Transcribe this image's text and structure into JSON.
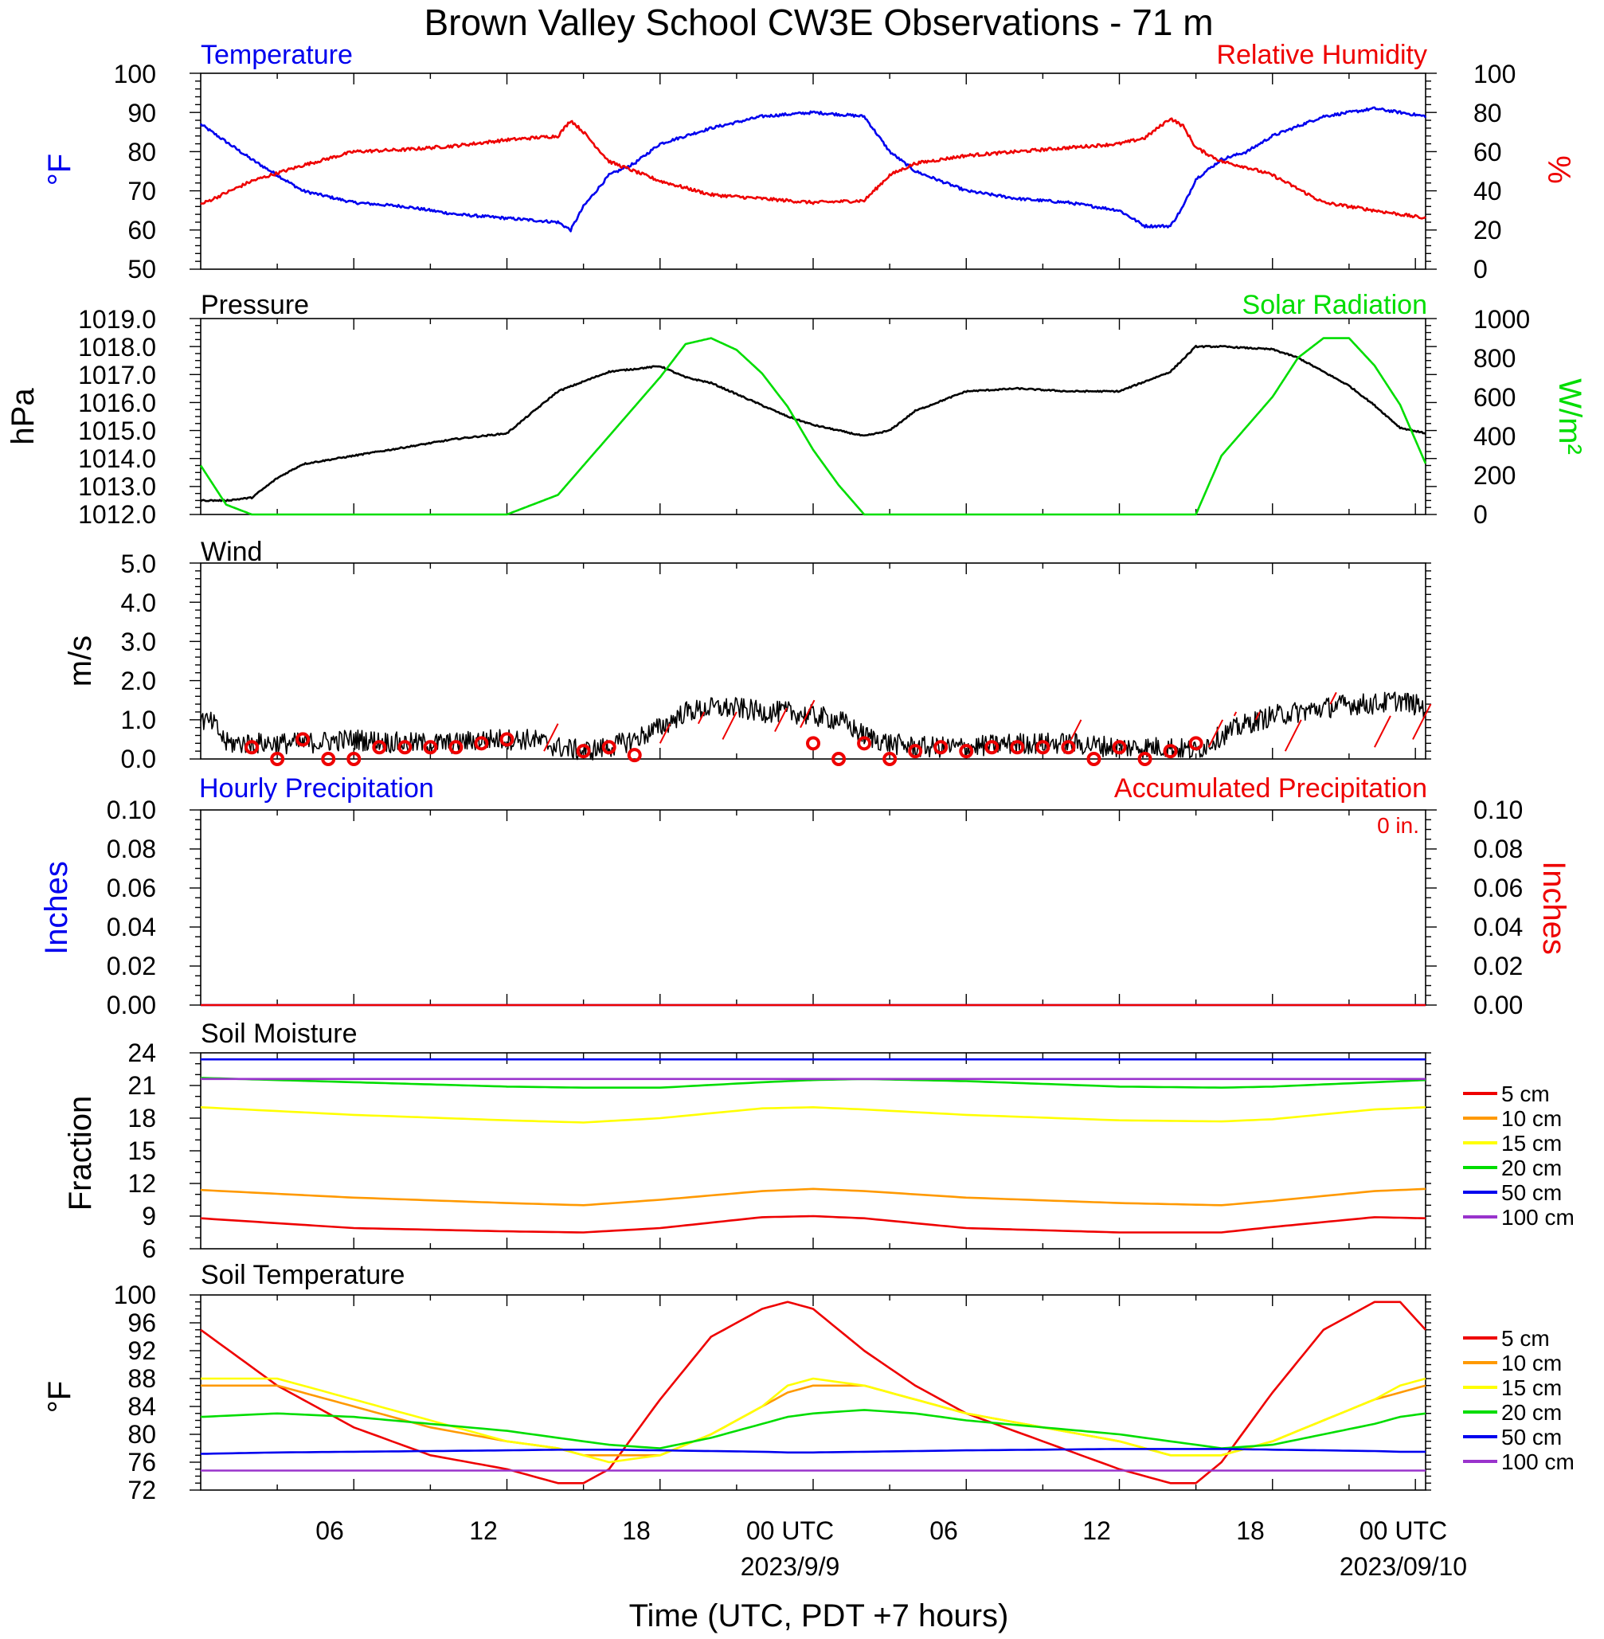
{
  "title": "Brown Valley School CW3E Observations - 71 m",
  "xlabel": "Time (UTC, PDT +7 hours)",
  "x_tick_labels": [
    "06",
    "12",
    "18",
    "00 UTC",
    "06",
    "12",
    "18",
    "00 UTC"
  ],
  "x_date_labels": [
    "2023/9/9",
    "2023/09/10"
  ],
  "colors": {
    "blue": "#0000ee",
    "red": "#ee0000",
    "green": "#00dd00",
    "black": "#000000",
    "orange": "#ff9900",
    "yellow": "#ffff00",
    "purple": "#9933cc"
  },
  "panels": {
    "temp_rh": {
      "left_title": "Temperature",
      "right_title": "Relative Humidity",
      "left_unit": "°F",
      "right_unit": "%",
      "left_ticks": [
        "100",
        "90",
        "80",
        "70",
        "60",
        "50"
      ],
      "right_ticks": [
        "100",
        "80",
        "60",
        "40",
        "20",
        "0"
      ]
    },
    "pressure_solar": {
      "left_title": "Pressure",
      "right_title": "Solar Radiation",
      "left_unit": "hPa",
      "right_unit": "W/m²",
      "left_ticks": [
        "1019.0",
        "1018.0",
        "1017.0",
        "1016.0",
        "1015.0",
        "1014.0",
        "1013.0",
        "1012.0"
      ],
      "right_ticks": [
        "1000",
        "800",
        "600",
        "400",
        "200",
        "0"
      ]
    },
    "wind": {
      "left_title": "Wind",
      "left_unit": "m/s",
      "left_ticks": [
        "5.0",
        "4.0",
        "3.0",
        "2.0",
        "1.0",
        "0.0"
      ]
    },
    "precip": {
      "left_title": "Hourly Precipitation",
      "right_title": "Accumulated Precipitation",
      "left_unit": "Inches",
      "right_unit": "Inches",
      "accum_text": "0 in.",
      "left_ticks": [
        "0.10",
        "0.08",
        "0.06",
        "0.04",
        "0.02",
        "0.00"
      ],
      "right_ticks": [
        "0.10",
        "0.08",
        "0.06",
        "0.04",
        "0.02",
        "0.00"
      ]
    },
    "soil_moisture": {
      "left_title": "Soil Moisture",
      "left_unit": "Fraction",
      "left_ticks": [
        "24",
        "21",
        "18",
        "15",
        "12",
        "9",
        "6"
      ],
      "legend": [
        "5 cm",
        "10 cm",
        "15 cm",
        "20 cm",
        "50 cm",
        "100 cm"
      ]
    },
    "soil_temp": {
      "left_title": "Soil Temperature",
      "left_unit": "°F",
      "left_ticks": [
        "100",
        "96",
        "92",
        "88",
        "84",
        "80",
        "76",
        "72"
      ],
      "legend": [
        "5 cm",
        "10 cm",
        "15 cm",
        "20 cm",
        "50 cm",
        "100 cm"
      ]
    }
  },
  "chart_data": [
    {
      "type": "line",
      "title": "Temperature / Relative Humidity",
      "x_hours_utc": [
        0,
        2,
        4,
        6,
        8,
        10,
        12,
        14,
        14.5,
        15,
        16,
        17,
        18,
        20,
        22,
        24,
        26,
        27,
        28,
        30,
        32,
        34,
        36,
        37,
        38,
        38.5,
        39,
        40,
        41,
        42,
        44,
        46,
        48
      ],
      "ylim": [
        50,
        100
      ],
      "y2lim": [
        0,
        100
      ],
      "series": [
        {
          "name": "Temperature",
          "axis": "left",
          "color": "#0000ee",
          "values": [
            87,
            78,
            70,
            67,
            66,
            64,
            63,
            62,
            60,
            66,
            74,
            77,
            82,
            86,
            89,
            90,
            89,
            80,
            75,
            70,
            68,
            67,
            65,
            61,
            61,
            66,
            73,
            78,
            80,
            84,
            89,
            91,
            89
          ]
        },
        {
          "name": "Relative Humidity",
          "axis": "right",
          "color": "#ee0000",
          "values": [
            33,
            45,
            53,
            60,
            61,
            63,
            66,
            68,
            76,
            70,
            55,
            50,
            45,
            38,
            36,
            34,
            35,
            48,
            54,
            58,
            60,
            62,
            64,
            67,
            77,
            73,
            62,
            55,
            52,
            48,
            34,
            30,
            26
          ]
        }
      ]
    },
    {
      "type": "line",
      "title": "Pressure / Solar Radiation",
      "x_hours_utc": [
        0,
        1,
        2,
        3,
        4,
        6,
        8,
        10,
        11,
        12,
        14,
        16,
        18,
        19,
        20,
        21,
        22,
        23,
        24,
        25,
        26,
        27,
        28,
        30,
        32,
        34,
        35,
        36,
        38,
        39,
        40,
        42,
        43,
        44,
        45,
        46,
        47,
        48
      ],
      "ylim": [
        1012,
        1019
      ],
      "y2lim": [
        0,
        1000
      ],
      "series": [
        {
          "name": "Pressure",
          "axis": "left",
          "color": "#000000",
          "values": [
            1012.5,
            1012.5,
            1012.6,
            1013.3,
            1013.8,
            1014.1,
            1014.4,
            1014.7,
            1014.8,
            1014.9,
            1016.4,
            1017.1,
            1017.3,
            1016.9,
            1016.7,
            1016.3,
            1015.9,
            1015.5,
            1015.2,
            1015.0,
            1014.8,
            1015.0,
            1015.7,
            1016.4,
            1016.5,
            1016.4,
            1016.4,
            1016.4,
            1017.1,
            1018.0,
            1018.0,
            1017.9,
            1017.6,
            1017.1,
            1016.6,
            1015.9,
            1015.1,
            1014.9
          ]
        },
        {
          "name": "Solar Radiation",
          "axis": "right",
          "color": "#00dd00",
          "values": [
            250,
            50,
            0,
            0,
            0,
            0,
            0,
            0,
            0,
            0,
            100,
            400,
            700,
            870,
            900,
            840,
            720,
            550,
            330,
            150,
            0,
            0,
            0,
            0,
            0,
            0,
            0,
            0,
            0,
            0,
            300,
            600,
            800,
            900,
            900,
            760,
            560,
            260
          ]
        }
      ]
    },
    {
      "type": "line",
      "title": "Wind",
      "x_hours_utc": [
        0,
        0.5,
        1,
        2,
        4,
        6,
        8,
        10,
        11,
        12,
        13,
        14,
        15,
        16,
        17,
        18,
        19,
        20,
        21,
        22,
        23,
        24,
        25,
        26,
        27,
        28,
        30,
        32,
        34,
        36,
        38,
        39,
        40,
        41,
        42,
        43,
        44,
        45,
        46,
        47,
        48
      ],
      "ylim": [
        0,
        5
      ],
      "series": [
        {
          "name": "Wind speed",
          "color": "#000000",
          "values": [
            1.0,
            0.9,
            0.4,
            0.4,
            0.4,
            0.5,
            0.4,
            0.4,
            0.5,
            0.5,
            0.5,
            0.3,
            0.2,
            0.3,
            0.5,
            0.8,
            1.2,
            1.3,
            1.3,
            1.2,
            1.2,
            1.1,
            1.0,
            0.6,
            0.4,
            0.3,
            0.3,
            0.4,
            0.4,
            0.3,
            0.3,
            0.2,
            0.6,
            0.9,
            1.1,
            1.2,
            1.3,
            1.4,
            1.4,
            1.5,
            1.3
          ]
        }
      ],
      "calm_marker_hours": [
        2,
        3,
        4,
        5,
        6,
        7,
        8,
        9,
        10,
        11,
        12,
        15,
        16,
        17,
        24,
        25,
        26,
        27,
        28,
        29,
        30,
        31,
        32,
        33,
        34,
        35,
        36,
        37,
        38,
        39
      ],
      "calm_marker_values": [
        0.3,
        0.0,
        0.5,
        0.0,
        0.0,
        0.3,
        0.3,
        0.3,
        0.3,
        0.4,
        0.5,
        0.2,
        0.3,
        0.1,
        0.4,
        0.0,
        0.4,
        0.0,
        0.2,
        0.3,
        0.2,
        0.3,
        0.3,
        0.3,
        0.3,
        0.0,
        0.3,
        0.0,
        0.2,
        0.4
      ]
    },
    {
      "type": "line",
      "title": "Hourly / Accumulated Precipitation",
      "x_hours_utc": [
        0,
        48
      ],
      "ylim": [
        0,
        0.1
      ],
      "y2lim": [
        0,
        0.1
      ],
      "series": [
        {
          "name": "Hourly Precipitation",
          "axis": "left",
          "color": "#0000ee",
          "values": [
            0,
            0
          ]
        },
        {
          "name": "Accumulated Precipitation",
          "axis": "right",
          "color": "#ee0000",
          "values": [
            0,
            0
          ]
        }
      ]
    },
    {
      "type": "line",
      "title": "Soil Moisture",
      "x_hours_utc": [
        0,
        6,
        12,
        15,
        18,
        22,
        24,
        26,
        30,
        36,
        40,
        42,
        46,
        48
      ],
      "ylim": [
        6,
        24
      ],
      "series": [
        {
          "name": "5 cm",
          "color": "#ee0000",
          "values": [
            8.8,
            7.9,
            7.6,
            7.5,
            7.9,
            8.9,
            9.0,
            8.8,
            7.9,
            7.5,
            7.5,
            8.0,
            8.9,
            8.8
          ]
        },
        {
          "name": "10 cm",
          "color": "#ff9900",
          "values": [
            11.4,
            10.7,
            10.2,
            10.0,
            10.5,
            11.3,
            11.5,
            11.3,
            10.7,
            10.2,
            10.0,
            10.4,
            11.3,
            11.5
          ]
        },
        {
          "name": "15 cm",
          "color": "#ffff00",
          "values": [
            19.0,
            18.3,
            17.8,
            17.6,
            18.0,
            18.9,
            19.0,
            18.8,
            18.3,
            17.8,
            17.7,
            17.9,
            18.8,
            19.0
          ]
        },
        {
          "name": "20 cm",
          "color": "#00dd00",
          "values": [
            21.7,
            21.3,
            20.9,
            20.8,
            20.8,
            21.3,
            21.5,
            21.6,
            21.4,
            20.9,
            20.8,
            20.9,
            21.3,
            21.5
          ]
        },
        {
          "name": "50 cm",
          "color": "#0000ee",
          "values": [
            23.4,
            23.4,
            23.4,
            23.4,
            23.4,
            23.4,
            23.4,
            23.4,
            23.4,
            23.4,
            23.4,
            23.4,
            23.4,
            23.4
          ]
        },
        {
          "name": "100 cm",
          "color": "#9933cc",
          "values": [
            21.6,
            21.6,
            21.6,
            21.6,
            21.6,
            21.6,
            21.6,
            21.6,
            21.6,
            21.6,
            21.6,
            21.6,
            21.6,
            21.6
          ]
        }
      ]
    },
    {
      "type": "line",
      "title": "Soil Temperature",
      "x_hours_utc": [
        0,
        3,
        6,
        9,
        12,
        14,
        15,
        16,
        18,
        20,
        22,
        23,
        24,
        26,
        28,
        30,
        33,
        36,
        38,
        39,
        40,
        42,
        44,
        46,
        47,
        48
      ],
      "ylim": [
        72,
        100
      ],
      "series": [
        {
          "name": "5 cm",
          "color": "#ee0000",
          "values": [
            95,
            87,
            81,
            77,
            75,
            73,
            73,
            75,
            85,
            94,
            98,
            99,
            98,
            92,
            87,
            83,
            79,
            75,
            73,
            73,
            76,
            86,
            95,
            99,
            99,
            95
          ]
        },
        {
          "name": "10 cm",
          "color": "#ff9900",
          "values": [
            87,
            87,
            84,
            81,
            79,
            78,
            77,
            77,
            77,
            80,
            84,
            86,
            87,
            87,
            85,
            83,
            81,
            79,
            77,
            77,
            77,
            79,
            82,
            85,
            86,
            87
          ]
        },
        {
          "name": "15 cm",
          "color": "#ffff00",
          "values": [
            88,
            88,
            85,
            82,
            79,
            78,
            77,
            76,
            77,
            80,
            84,
            87,
            88,
            87,
            85,
            83,
            81,
            79,
            77,
            77,
            77,
            79,
            82,
            85,
            87,
            88
          ]
        },
        {
          "name": "20 cm",
          "color": "#00dd00",
          "values": [
            82.5,
            83,
            82.5,
            81.5,
            80.5,
            79.5,
            79,
            78.5,
            78,
            79.5,
            81.5,
            82.5,
            83,
            83.5,
            83,
            82,
            81,
            80,
            79,
            78.5,
            78,
            78.5,
            80,
            81.5,
            82.5,
            83
          ]
        },
        {
          "name": "50 cm",
          "color": "#0000ee",
          "values": [
            77.2,
            77.4,
            77.5,
            77.6,
            77.7,
            77.8,
            77.8,
            77.8,
            77.7,
            77.6,
            77.5,
            77.4,
            77.4,
            77.5,
            77.6,
            77.7,
            77.8,
            77.9,
            77.9,
            77.9,
            77.9,
            77.8,
            77.7,
            77.6,
            77.5,
            77.5
          ]
        },
        {
          "name": "100 cm",
          "color": "#9933cc",
          "values": [
            74.8,
            74.8,
            74.8,
            74.8,
            74.8,
            74.8,
            74.8,
            74.8,
            74.8,
            74.8,
            74.8,
            74.8,
            74.8,
            74.8,
            74.8,
            74.8,
            74.8,
            74.8,
            74.8,
            74.8,
            74.8,
            74.8,
            74.8,
            74.8,
            74.8,
            74.8
          ]
        }
      ]
    }
  ]
}
